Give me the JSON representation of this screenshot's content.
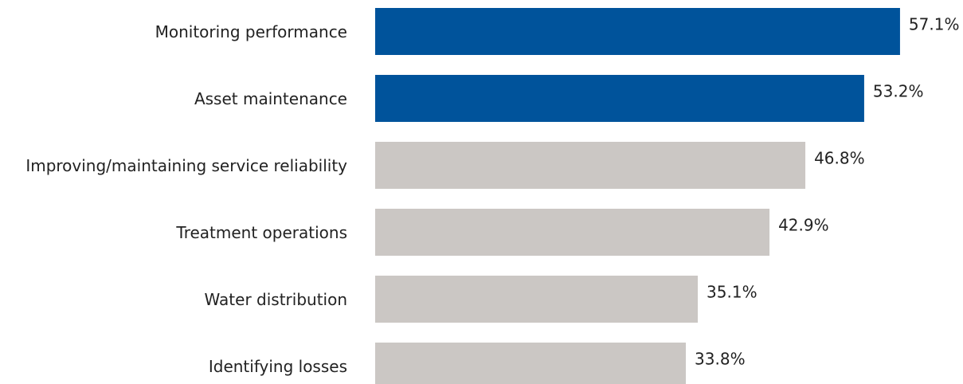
{
  "chart_data": {
    "type": "bar",
    "orientation": "horizontal",
    "categories": [
      "Monitoring performance",
      "Asset maintenance",
      "Improving/maintaining service reliability",
      "Treatment operations",
      "Water distribution",
      "Identifying losses"
    ],
    "values": [
      57.1,
      53.2,
      46.8,
      42.9,
      35.1,
      33.8
    ],
    "value_labels": [
      "57.1%",
      "53.2%",
      "46.8%",
      "42.9%",
      "35.1%",
      "33.8%"
    ],
    "colors": [
      "#00539b",
      "#00539b",
      "#cbc7c4",
      "#cbc7c4",
      "#cbc7c4",
      "#cbc7c4"
    ]
  }
}
